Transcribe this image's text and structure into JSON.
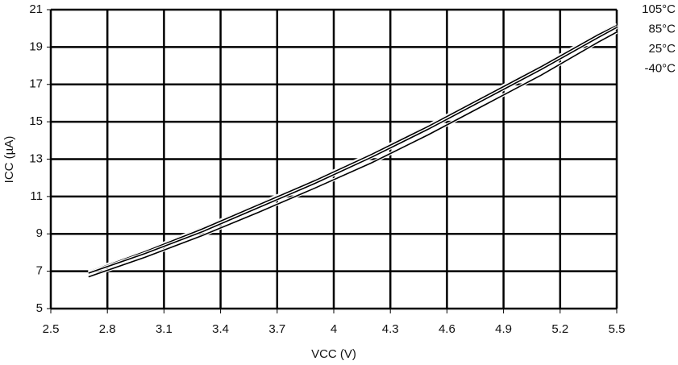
{
  "chart_data": {
    "type": "line",
    "x_label": "VCC (V)",
    "y_label": "ICC (µA)",
    "x": [
      2.7,
      3.0,
      3.3,
      3.6,
      3.9,
      4.2,
      4.5,
      4.8,
      5.1,
      5.4,
      5.5
    ],
    "series": [
      {
        "name": "105°C",
        "color": "#000000",
        "values": [
          7.0,
          8.1,
          9.3,
          10.6,
          11.9,
          13.3,
          14.8,
          16.4,
          18.0,
          19.7,
          20.2
        ]
      },
      {
        "name": "85°C",
        "color": "#000000",
        "values": [
          6.95,
          8.05,
          9.25,
          10.55,
          11.85,
          13.25,
          14.75,
          16.35,
          17.95,
          19.65,
          20.15
        ]
      },
      {
        "name": "25°C",
        "color": "#000000",
        "values": [
          6.9,
          7.95,
          9.1,
          10.4,
          11.7,
          13.1,
          14.6,
          16.2,
          17.8,
          19.5,
          20.05
        ]
      },
      {
        "name": "-40°C",
        "color": "#000000",
        "values": [
          6.7,
          7.75,
          8.9,
          10.15,
          11.45,
          12.8,
          14.3,
          15.9,
          17.5,
          19.25,
          19.8
        ]
      }
    ],
    "xlim": [
      2.5,
      5.5
    ],
    "xticks": [
      2.5,
      2.8,
      3.1,
      3.4,
      3.7,
      4,
      4.3,
      4.6,
      4.9,
      5.2,
      5.5
    ],
    "ylim": [
      5,
      21
    ],
    "yticks": [
      5,
      7,
      9,
      11,
      13,
      15,
      17,
      19,
      21
    ],
    "grid": true,
    "legend": "top-right"
  }
}
